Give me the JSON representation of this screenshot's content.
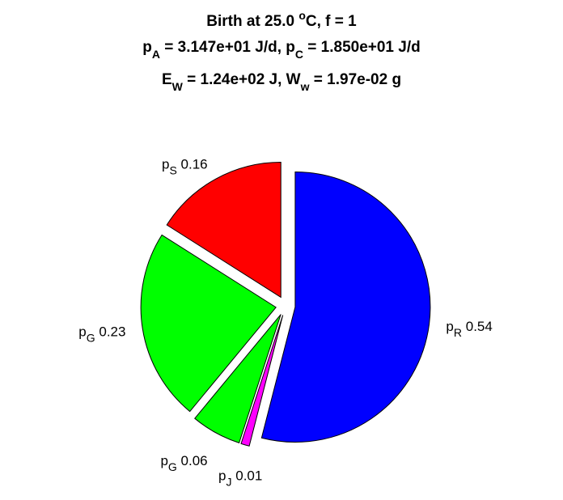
{
  "chart_data": {
    "type": "pie",
    "title": [
      [
        "Birth at 25.0 ",
        "o",
        "C, f = 1"
      ],
      [
        "p",
        "A",
        " = 3.147e+01 J/d, p",
        "C",
        " = 1.850e+01 J/d"
      ],
      [
        "E",
        "W",
        " = 1.24e+02 J, W",
        "w",
        " = 1.97e-02 g"
      ]
    ],
    "categories": [
      [
        "p",
        "R"
      ],
      [
        "p",
        "J"
      ],
      [
        "p",
        "G"
      ],
      [
        "p",
        "G"
      ],
      [
        "p",
        "S"
      ]
    ],
    "values": [
      0.54,
      0.01,
      0.06,
      0.23,
      0.16
    ],
    "colors": [
      "#0000ff",
      "#ff00ff",
      "#00ff00",
      "#00ff00",
      "#ff0000"
    ],
    "explode": true
  }
}
